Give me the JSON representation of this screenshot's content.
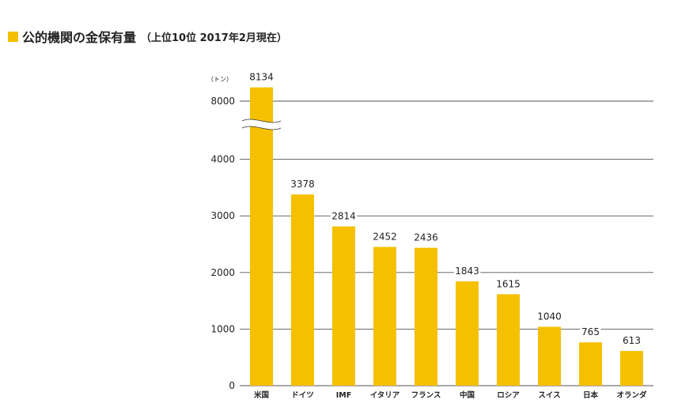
{
  "header": {
    "title": "公的機関の金保有量",
    "subtitle": "（上位10位 2017年2月現在）"
  },
  "chart_data": {
    "type": "bar",
    "unit_label": "（トン）",
    "categories": [
      "米国",
      "ドイツ",
      "IMF",
      "イタリア",
      "フランス",
      "中国",
      "ロシア",
      "スイス",
      "日本",
      "オランダ"
    ],
    "values": [
      8134,
      3378,
      2814,
      2452,
      2436,
      1843,
      1615,
      1040,
      765,
      613
    ],
    "value_labels": [
      "8134",
      "3378",
      "2814",
      "2452",
      "2436",
      "1843",
      "1615",
      "1040",
      "765",
      "613"
    ],
    "yticks": [
      "0",
      "1000",
      "2000",
      "3000",
      "4000",
      "8000"
    ],
    "y_axis_break": {
      "from": 4000,
      "to": 8000
    },
    "ylim": [
      0,
      8200
    ],
    "grid": true,
    "colors": {
      "bar": "#f5c000",
      "grid": "#555555",
      "marker": "#f5c000"
    }
  }
}
